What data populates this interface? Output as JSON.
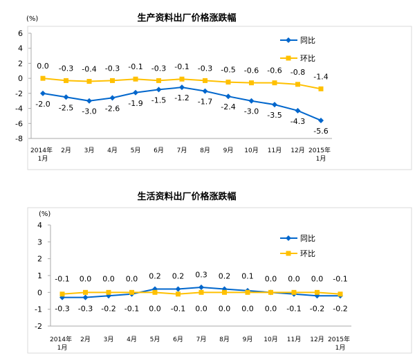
{
  "chart_data": [
    {
      "type": "line",
      "title": "生产资料出厂价格涨跌幅",
      "ylabel": "(%)",
      "ylim": [
        -8,
        6
      ],
      "yticks": [
        6,
        4,
        2,
        0,
        -2,
        -4,
        -6,
        -8
      ],
      "categories": [
        [
          "2014年",
          "1月"
        ],
        [
          "2月"
        ],
        [
          "3月"
        ],
        [
          "4月"
        ],
        [
          "5月"
        ],
        [
          "6月"
        ],
        [
          "7月"
        ],
        [
          "8月"
        ],
        [
          "9月"
        ],
        [
          "10月"
        ],
        [
          "11月"
        ],
        [
          "12月"
        ],
        [
          "2015年",
          "1月"
        ]
      ],
      "legend_position": "top-right",
      "series": [
        {
          "name": "同比",
          "color": "#0066cc",
          "marker": "diamond",
          "values": [
            -2.0,
            -2.5,
            -3.0,
            -2.6,
            -1.9,
            -1.5,
            -1.2,
            -1.7,
            -2.4,
            -3.0,
            -3.5,
            -4.3,
            -5.6
          ],
          "labels": [
            "-2.0",
            "-2.5",
            "-3.0",
            "-2.6",
            "-1.9",
            "-1.5",
            "-1.2",
            "-1.7",
            "-2.4",
            "-3.0",
            "-3.5",
            "-4.3",
            "-5.6"
          ],
          "label_side": "below"
        },
        {
          "name": "环比",
          "color": "#ffc000",
          "marker": "square",
          "values": [
            0.0,
            -0.3,
            -0.4,
            -0.3,
            -0.1,
            -0.3,
            -0.1,
            -0.3,
            -0.5,
            -0.6,
            -0.6,
            -0.8,
            -1.4
          ],
          "labels": [
            "0.0",
            "-0.3",
            "-0.4",
            "-0.3",
            "-0.1",
            "-0.3",
            "-0.1",
            "-0.3",
            "-0.5",
            "-0.6",
            "-0.6",
            "-0.8",
            "-1.4"
          ],
          "label_side": "above"
        }
      ]
    },
    {
      "type": "line",
      "title": "生活资料出厂价格涨跌幅",
      "ylabel": "(%)",
      "ylim": [
        -2,
        4
      ],
      "yticks": [
        4,
        3,
        2,
        1,
        0,
        -1,
        -2
      ],
      "categories": [
        [
          "2014年",
          "1月"
        ],
        [
          "2月"
        ],
        [
          "3月"
        ],
        [
          "4月"
        ],
        [
          "5月"
        ],
        [
          "6月"
        ],
        [
          "7月"
        ],
        [
          "8月"
        ],
        [
          "9月"
        ],
        [
          "10月"
        ],
        [
          "11月"
        ],
        [
          "12月"
        ],
        [
          "2015年",
          "1月"
        ]
      ],
      "legend_position": "top-right",
      "series": [
        {
          "name": "同比",
          "color": "#0066cc",
          "marker": "diamond",
          "values": [
            -0.3,
            -0.3,
            -0.2,
            -0.1,
            0.2,
            0.2,
            0.3,
            0.2,
            0.1,
            0.0,
            -0.1,
            -0.2,
            -0.2
          ],
          "top_labels": [
            "-0.1",
            "0.0",
            "0.0",
            "0.0",
            "0.2",
            "0.2",
            "0.3",
            "0.2",
            "0.1",
            "0.0",
            "0.0",
            "0.0",
            "-0.1"
          ],
          "bottom_labels": [
            "-0.3",
            "-0.3",
            "-0.2",
            "-0.1",
            "0.0",
            "-0.1",
            "0.0",
            "0.0",
            "0.0",
            "0.0",
            "-0.1",
            "-0.2",
            "-0.2"
          ]
        },
        {
          "name": "环比",
          "color": "#ffc000",
          "marker": "square",
          "values": [
            -0.1,
            0.0,
            0.0,
            0.0,
            0.0,
            -0.1,
            0.0,
            0.0,
            0.0,
            0.0,
            0.0,
            0.0,
            -0.1
          ]
        }
      ]
    }
  ]
}
